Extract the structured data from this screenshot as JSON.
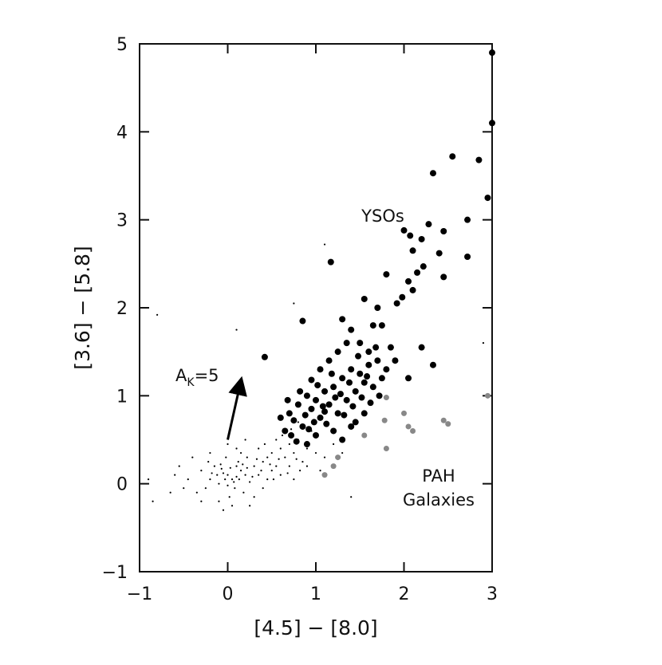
{
  "chart_data": {
    "type": "scatter",
    "xlabel": "[4.5] − [8.0]",
    "ylabel": "[3.6] − [5.8]",
    "xlim": [
      -1,
      3
    ],
    "ylim": [
      -1,
      5
    ],
    "xticks": [
      {
        "value": -1,
        "label": "−1"
      },
      0,
      1,
      2,
      3
    ],
    "yticks": [
      {
        "value": -1,
        "label": "−1"
      },
      0,
      1,
      2,
      3,
      4,
      5
    ],
    "annotation": {
      "base": "A",
      "sub": "K",
      "rest": "=5"
    },
    "arrow": {
      "x": [
        0.0,
        0.15
      ],
      "y": [
        0.5,
        1.17
      ]
    },
    "series": [
      {
        "name": "YSOs",
        "color": "#000000",
        "x": [
          3.0,
          3.0,
          2.55,
          2.33,
          2.85,
          2.95,
          2.72,
          2.72,
          2.28,
          2.0,
          2.07,
          2.45,
          1.17,
          2.2,
          2.22,
          2.4,
          2.1,
          2.15,
          2.45,
          1.8,
          2.1,
          2.05,
          1.98,
          1.92,
          1.7,
          1.55,
          1.75,
          1.65,
          0.85,
          1.3,
          1.4,
          1.5,
          2.2,
          2.33,
          2.05,
          1.9,
          0.42,
          1.85,
          1.6,
          0.7,
          0.75,
          0.8,
          0.85,
          0.9,
          0.95,
          1.0,
          1.05,
          1.1,
          1.15,
          1.2,
          1.25,
          1.3,
          1.35,
          1.4,
          1.45,
          1.5,
          1.55,
          1.6,
          1.65,
          1.7,
          1.75,
          1.8,
          0.65,
          0.72,
          0.78,
          0.88,
          0.92,
          0.98,
          1.02,
          1.08,
          1.12,
          1.18,
          1.22,
          1.28,
          1.32,
          1.38,
          1.42,
          1.48,
          1.52,
          1.58,
          1.62,
          1.68,
          1.72,
          1.05,
          0.95,
          1.15,
          1.25,
          1.35,
          0.82,
          0.6,
          0.68,
          1.0,
          1.2,
          1.4,
          1.3,
          0.9,
          1.55,
          1.45,
          1.1
        ],
        "values": [
          4.9,
          4.1,
          3.72,
          3.53,
          3.68,
          3.25,
          3.0,
          2.58,
          2.95,
          2.88,
          2.82,
          2.87,
          2.52,
          2.78,
          2.47,
          2.62,
          2.65,
          2.4,
          2.35,
          2.38,
          2.2,
          2.3,
          2.12,
          2.05,
          2.0,
          2.1,
          1.8,
          1.8,
          1.85,
          1.87,
          1.75,
          1.6,
          1.55,
          1.35,
          1.2,
          1.4,
          1.44,
          1.55,
          1.5,
          0.8,
          0.72,
          0.9,
          0.65,
          1.0,
          0.85,
          0.95,
          0.75,
          1.05,
          0.9,
          1.1,
          0.8,
          1.2,
          0.95,
          1.3,
          1.05,
          1.25,
          1.15,
          1.35,
          1.1,
          1.4,
          1.2,
          1.3,
          0.6,
          0.55,
          0.48,
          0.78,
          0.62,
          0.7,
          1.12,
          0.88,
          0.68,
          1.25,
          0.98,
          1.02,
          0.78,
          1.15,
          0.88,
          1.45,
          0.98,
          1.22,
          0.92,
          1.55,
          1.0,
          1.3,
          1.18,
          1.4,
          1.5,
          1.6,
          1.05,
          0.75,
          0.95,
          0.55,
          0.6,
          0.65,
          0.5,
          0.45,
          0.8,
          0.7,
          0.82
        ]
      },
      {
        "name": "PAH Galaxies",
        "color": "#888888",
        "x": [
          1.8,
          1.78,
          2.05,
          2.1,
          2.45,
          2.5,
          2.95,
          1.55,
          1.25,
          1.2,
          1.1,
          1.8,
          2.0
        ],
        "values": [
          0.98,
          0.72,
          0.65,
          0.6,
          0.72,
          0.68,
          1.0,
          0.55,
          0.3,
          0.2,
          0.1,
          0.4,
          0.8
        ]
      },
      {
        "color": "#000000",
        "x": [
          0.0,
          0.05,
          -0.05,
          0.1,
          0.15,
          -0.1,
          0.2,
          -0.15,
          0.08,
          0.12,
          -0.02,
          0.25,
          -0.2,
          0.3,
          -0.25,
          0.02,
          0.18,
          -0.08,
          0.22,
          0.35,
          -0.3,
          0.4,
          -0.35,
          0.45,
          0.5,
          0.55,
          0.6,
          0.65,
          0.7,
          0.75,
          0.8,
          0.85,
          0.9,
          1.0,
          1.05,
          0.95,
          0.5,
          0.4,
          0.3,
          -0.4,
          -0.45,
          -0.5,
          -0.55,
          0.1,
          0.0,
          0.05,
          -0.1,
          0.15,
          -0.05,
          0.25,
          0.35,
          0.2,
          -0.2,
          0.45,
          0.6,
          0.7,
          0.75,
          -0.3,
          -0.6,
          -0.65,
          0.55,
          0.65,
          0.8,
          0.9,
          1.1,
          1.2,
          0.1,
          0.03,
          -0.03,
          0.07,
          -0.12,
          0.13,
          0.17,
          -0.07,
          0.0,
          0.22,
          -0.18,
          0.28,
          -0.22,
          0.33,
          0.38,
          0.42,
          0.48,
          0.52,
          0.58,
          0.62,
          0.68,
          0.72,
          0.78,
          0.82,
          -0.85,
          -0.9,
          1.3,
          -0.8,
          0.1,
          1.1,
          0.75,
          1.4,
          2.9
        ],
        "values": [
          0.1,
          0.05,
          0.12,
          0.08,
          0.15,
          0.0,
          0.1,
          0.2,
          -0.05,
          0.25,
          0.3,
          0.02,
          0.05,
          0.2,
          -0.05,
          -0.15,
          -0.1,
          0.22,
          0.3,
          0.1,
          0.15,
          0.25,
          -0.1,
          0.05,
          0.35,
          0.2,
          0.4,
          0.3,
          0.45,
          0.35,
          0.5,
          0.25,
          0.4,
          0.35,
          0.15,
          0.6,
          0.15,
          -0.05,
          -0.15,
          0.3,
          0.05,
          -0.05,
          0.2,
          0.4,
          0.45,
          -0.25,
          -0.2,
          0.35,
          -0.3,
          -0.25,
          0.4,
          0.5,
          0.35,
          0.3,
          0.1,
          0.2,
          0.05,
          -0.2,
          0.1,
          -0.1,
          0.5,
          0.6,
          0.7,
          0.2,
          0.3,
          0.45,
          0.2,
          0.18,
          0.05,
          0.02,
          0.1,
          0.05,
          0.22,
          0.17,
          -0.02,
          0.18,
          0.12,
          0.08,
          0.25,
          0.28,
          0.15,
          0.45,
          0.22,
          0.05,
          0.28,
          0.55,
          0.12,
          0.62,
          0.28,
          0.15,
          -0.2,
          0.05,
          0.35,
          1.92,
          1.75,
          2.72,
          2.05,
          -0.15,
          1.6
        ]
      }
    ]
  }
}
